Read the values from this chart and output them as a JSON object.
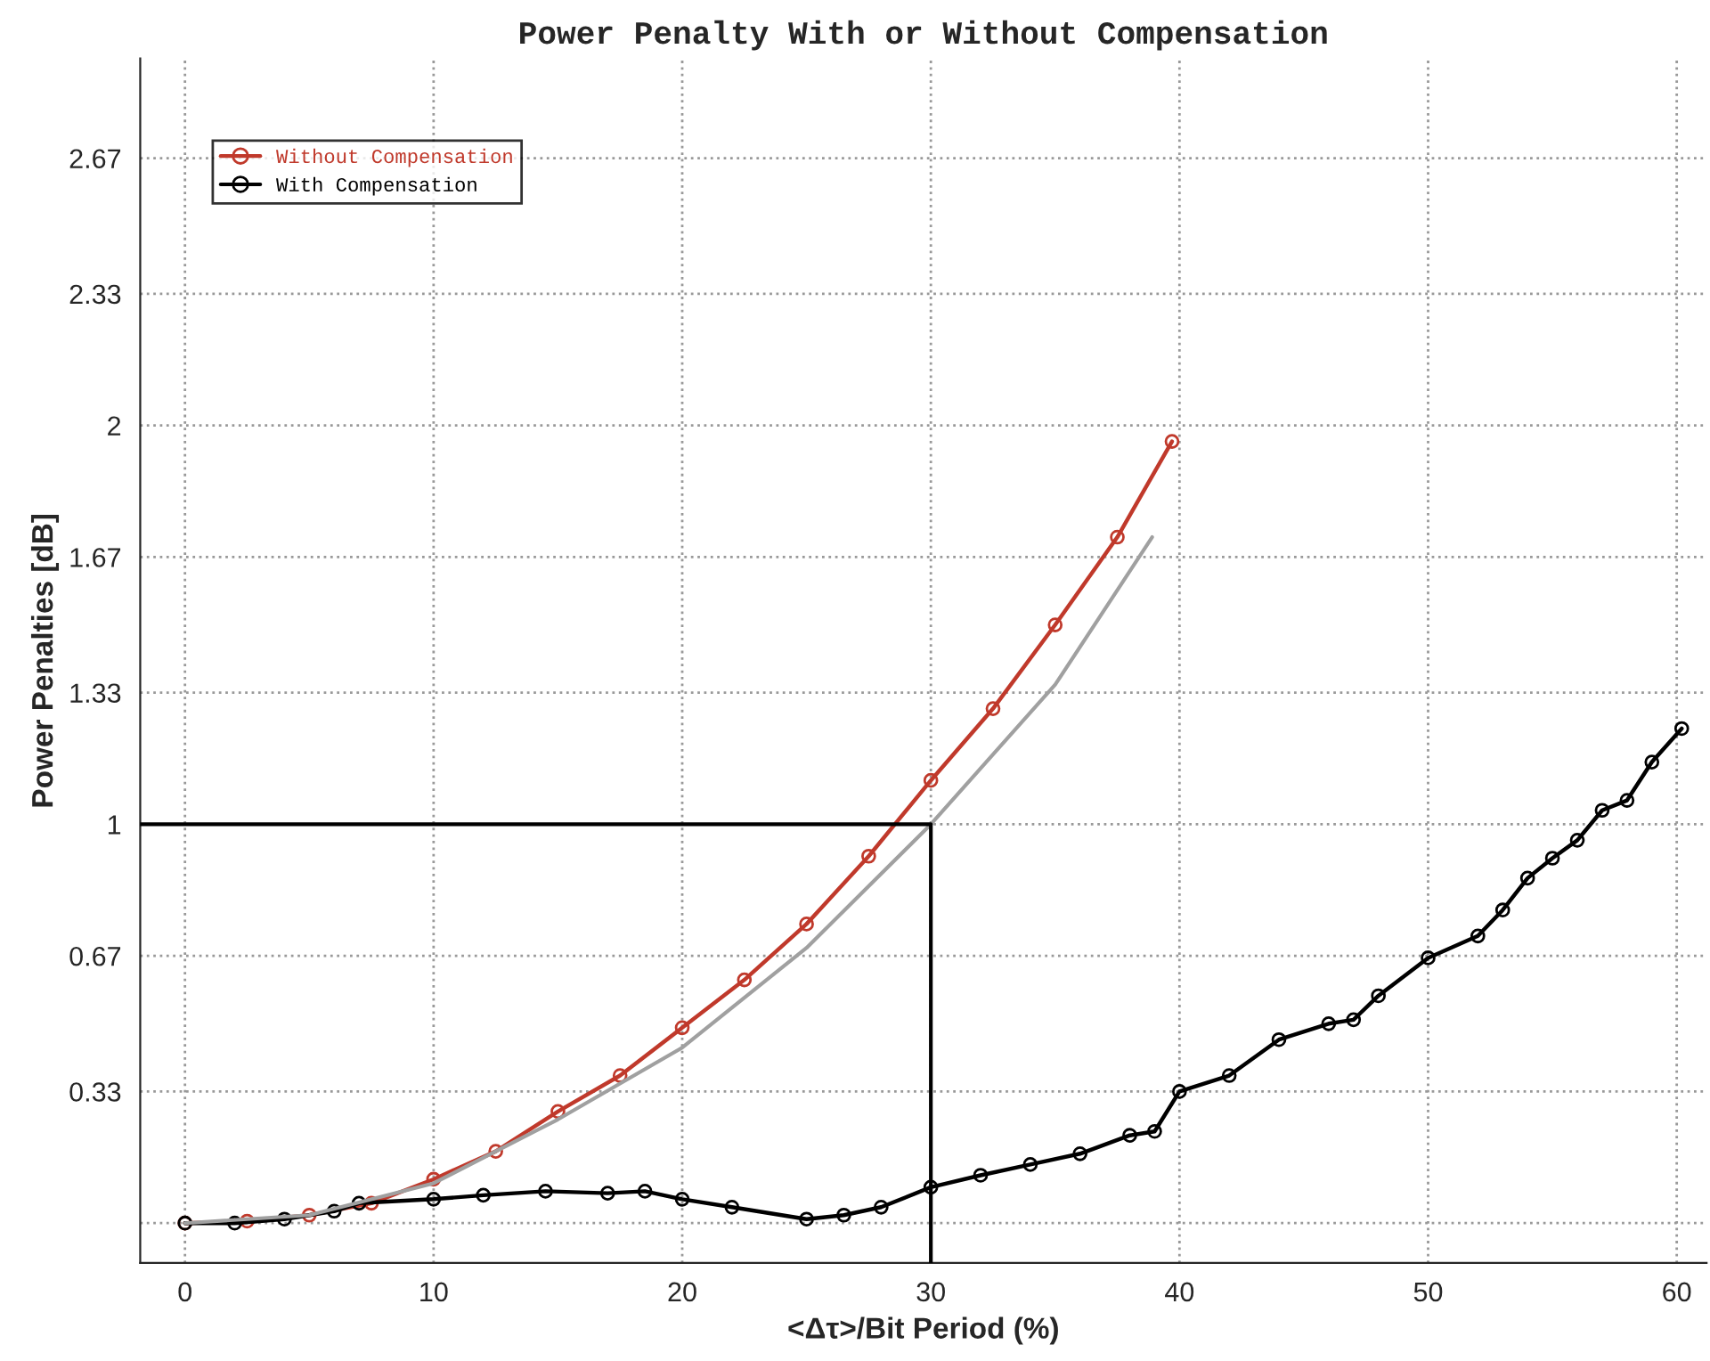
{
  "chart_data": {
    "type": "line",
    "title": "Power Penalty With or Without Compensation",
    "xlabel": "<Δτ>/Bit Period (%)",
    "ylabel": "Power Penalties [dB]",
    "xlim": [
      -1.8,
      61.2
    ],
    "ylim": [
      -0.1,
      2.92
    ],
    "xticks": [
      0,
      10,
      20,
      30,
      40,
      50,
      60
    ],
    "yticks": [
      {
        "value": 0,
        "label": null
      },
      0.33,
      0.67,
      1,
      1.33,
      1.67,
      2,
      2.33,
      2.67
    ],
    "grid": true,
    "legend": "top left",
    "marker": "circle",
    "line_style": "solid",
    "series": [
      {
        "name": "Without Compensation",
        "color": "#c0392b",
        "x": [
          0,
          2.5,
          5,
          7.5,
          10,
          12.5,
          15,
          17.5,
          20,
          22.5,
          25,
          27.5,
          30,
          32.5,
          35,
          37.5,
          39.7
        ],
        "values": [
          0,
          0.005,
          0.02,
          0.05,
          0.11,
          0.18,
          0.28,
          0.37,
          0.49,
          0.61,
          0.75,
          0.92,
          1.11,
          1.29,
          1.5,
          1.72,
          1.96
        ]
      },
      {
        "name": "With Compensation",
        "color": "#000000",
        "x": [
          0,
          2,
          4,
          6,
          7,
          10,
          12,
          14.5,
          17,
          18.5,
          20,
          22,
          25,
          26.5,
          28,
          30,
          32,
          34,
          36,
          38,
          39,
          40,
          42,
          44,
          46,
          47,
          48,
          50,
          52,
          53,
          54,
          55,
          56,
          57,
          58,
          59,
          60.2
        ],
        "values": [
          0,
          0,
          0.01,
          0.03,
          0.05,
          0.06,
          0.07,
          0.08,
          0.075,
          0.08,
          0.06,
          0.04,
          0.01,
          0.02,
          0.04,
          0.09,
          0.12,
          0.147,
          0.174,
          0.22,
          0.23,
          0.33,
          0.37,
          0.46,
          0.5,
          0.51,
          0.57,
          0.665,
          0.72,
          0.785,
          0.865,
          0.915,
          0.96,
          1.035,
          1.06,
          1.156,
          1.24
        ]
      },
      {
        "type": "line",
        "color": "#a0a0a0",
        "marker": "none",
        "x": [
          0,
          5,
          10,
          15,
          20,
          25,
          30,
          35,
          38.9
        ],
        "values": [
          0,
          0.02,
          0.1,
          0.26,
          0.44,
          0.69,
          1.0,
          1.35,
          1.72
        ]
      },
      {
        "type": "line",
        "color": "#000000",
        "marker": "none",
        "x": [
          -1.8,
          30,
          30
        ],
        "values": [
          1,
          1,
          -0.1
        ]
      }
    ]
  }
}
